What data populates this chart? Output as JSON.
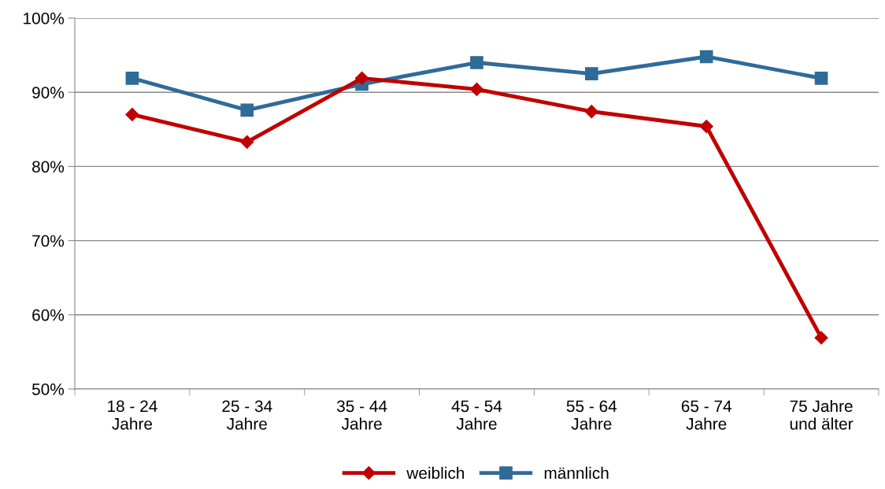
{
  "chart_data": {
    "type": "line",
    "categories": [
      "18 - 24\nJahre",
      "25 - 34\nJahre",
      "35 - 44\nJahre",
      "45 - 54\nJahre",
      "55 - 64\nJahre",
      "65 - 74\nJahre",
      "75 Jahre\nund älter"
    ],
    "series": [
      {
        "name": "weiblich",
        "color": "#c00000",
        "marker": "diamond",
        "values": [
          87.0,
          83.3,
          91.9,
          90.4,
          87.4,
          85.4,
          56.9
        ]
      },
      {
        "name": "männlich",
        "color": "#2f6b99",
        "marker": "square",
        "values": [
          91.9,
          87.6,
          91.1,
          94.0,
          92.5,
          94.8,
          91.9
        ]
      }
    ],
    "ylim": [
      50,
      100
    ],
    "yticks": [
      {
        "value": 50,
        "label": "50%"
      },
      {
        "value": 60,
        "label": "60%"
      },
      {
        "value": 70,
        "label": "70%"
      },
      {
        "value": 80,
        "label": "80%"
      },
      {
        "value": 90,
        "label": "90%"
      },
      {
        "value": 100,
        "label": "100%"
      }
    ],
    "grid": "y",
    "legend": "bottom",
    "line_style": "solid"
  }
}
